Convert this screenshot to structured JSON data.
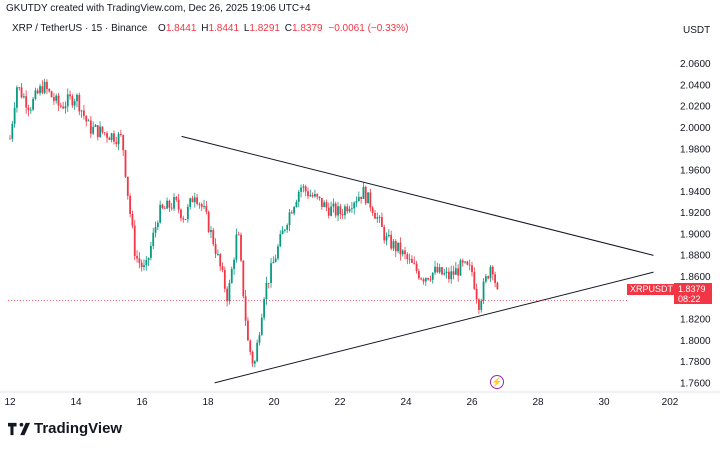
{
  "header": {
    "text": "GKUTDY created with TradingView.com, Dec 26, 2025 19:06 UTC+4"
  },
  "legend": {
    "symbol": "XRP / TetherUS · 15 · Binance",
    "o_label": "O",
    "o_value": "1.8441",
    "h_label": "H",
    "h_value": "1.8441",
    "l_label": "L",
    "l_value": "1.8291",
    "c_label": "C",
    "c_value": "1.8379",
    "change": "−0.0061 (−0.33%)"
  },
  "price_axis": {
    "unit": "USDT",
    "ticks": [
      "2.0600",
      "2.0400",
      "2.0200",
      "2.0000",
      "1.9800",
      "1.9600",
      "1.9400",
      "1.9200",
      "1.9000",
      "1.8800",
      "1.8600",
      "1.8400",
      "1.8200",
      "1.8000",
      "1.7800",
      "1.7600"
    ]
  },
  "time_axis": {
    "ticks": [
      "12",
      "14",
      "16",
      "18",
      "20",
      "22",
      "24",
      "26",
      "28",
      "30",
      "202"
    ]
  },
  "price_tag": {
    "pair": "XRPUSDT",
    "price": "1.8379",
    "countdown": "08:22"
  },
  "brand": {
    "name": "TradingView"
  },
  "colors": {
    "up": "#089981",
    "down": "#f23645",
    "line": "#131722",
    "accent": "#9c27b0"
  },
  "icons": {
    "flash": "lightning-icon",
    "logo": "tradingview-logo-icon"
  },
  "chart_data": {
    "type": "candlestick",
    "symbol": "XRP / TetherUS",
    "interval": "15",
    "exchange": "Binance",
    "x_range": [
      12,
      31.2
    ],
    "ylim": [
      1.75,
      2.07
    ],
    "last_price": 1.8379,
    "trendlines": [
      {
        "from": {
          "x": 17.2,
          "y": 1.9921
        },
        "to": {
          "x": 31.5,
          "y": 1.8803
        }
      },
      {
        "from": {
          "x": 18.2,
          "y": 1.7605
        },
        "to": {
          "x": 31.5,
          "y": 1.8645
        }
      }
    ],
    "price_path": [
      {
        "x": 12.0,
        "y": 1.99
      },
      {
        "x": 12.2,
        "y": 2.04
      },
      {
        "x": 12.6,
        "y": 2.02
      },
      {
        "x": 13.0,
        "y": 2.04
      },
      {
        "x": 13.5,
        "y": 2.02
      },
      {
        "x": 14.0,
        "y": 2.03
      },
      {
        "x": 14.4,
        "y": 2.0
      },
      {
        "x": 14.9,
        "y": 1.995
      },
      {
        "x": 15.4,
        "y": 1.99
      },
      {
        "x": 15.6,
        "y": 1.93
      },
      {
        "x": 15.8,
        "y": 1.88
      },
      {
        "x": 16.1,
        "y": 1.865
      },
      {
        "x": 16.5,
        "y": 1.92
      },
      {
        "x": 17.0,
        "y": 1.93
      },
      {
        "x": 17.3,
        "y": 1.915
      },
      {
        "x": 17.6,
        "y": 1.94
      },
      {
        "x": 17.9,
        "y": 1.92
      },
      {
        "x": 18.2,
        "y": 1.89
      },
      {
        "x": 18.6,
        "y": 1.84
      },
      {
        "x": 18.9,
        "y": 1.905
      },
      {
        "x": 19.2,
        "y": 1.8
      },
      {
        "x": 19.4,
        "y": 1.775
      },
      {
        "x": 19.7,
        "y": 1.845
      },
      {
        "x": 20.0,
        "y": 1.875
      },
      {
        "x": 20.4,
        "y": 1.915
      },
      {
        "x": 20.8,
        "y": 1.945
      },
      {
        "x": 21.2,
        "y": 1.935
      },
      {
        "x": 21.6,
        "y": 1.925
      },
      {
        "x": 22.0,
        "y": 1.92
      },
      {
        "x": 22.3,
        "y": 1.93
      },
      {
        "x": 22.7,
        "y": 1.94
      },
      {
        "x": 23.0,
        "y": 1.925
      },
      {
        "x": 23.4,
        "y": 1.895
      },
      {
        "x": 23.8,
        "y": 1.885
      },
      {
        "x": 24.2,
        "y": 1.87
      },
      {
        "x": 24.5,
        "y": 1.86
      },
      {
        "x": 24.9,
        "y": 1.865
      },
      {
        "x": 25.3,
        "y": 1.86
      },
      {
        "x": 25.7,
        "y": 1.87
      },
      {
        "x": 26.0,
        "y": 1.865
      },
      {
        "x": 26.2,
        "y": 1.835
      },
      {
        "x": 26.4,
        "y": 1.855
      },
      {
        "x": 26.6,
        "y": 1.875
      },
      {
        "x": 26.8,
        "y": 1.8379
      }
    ]
  }
}
